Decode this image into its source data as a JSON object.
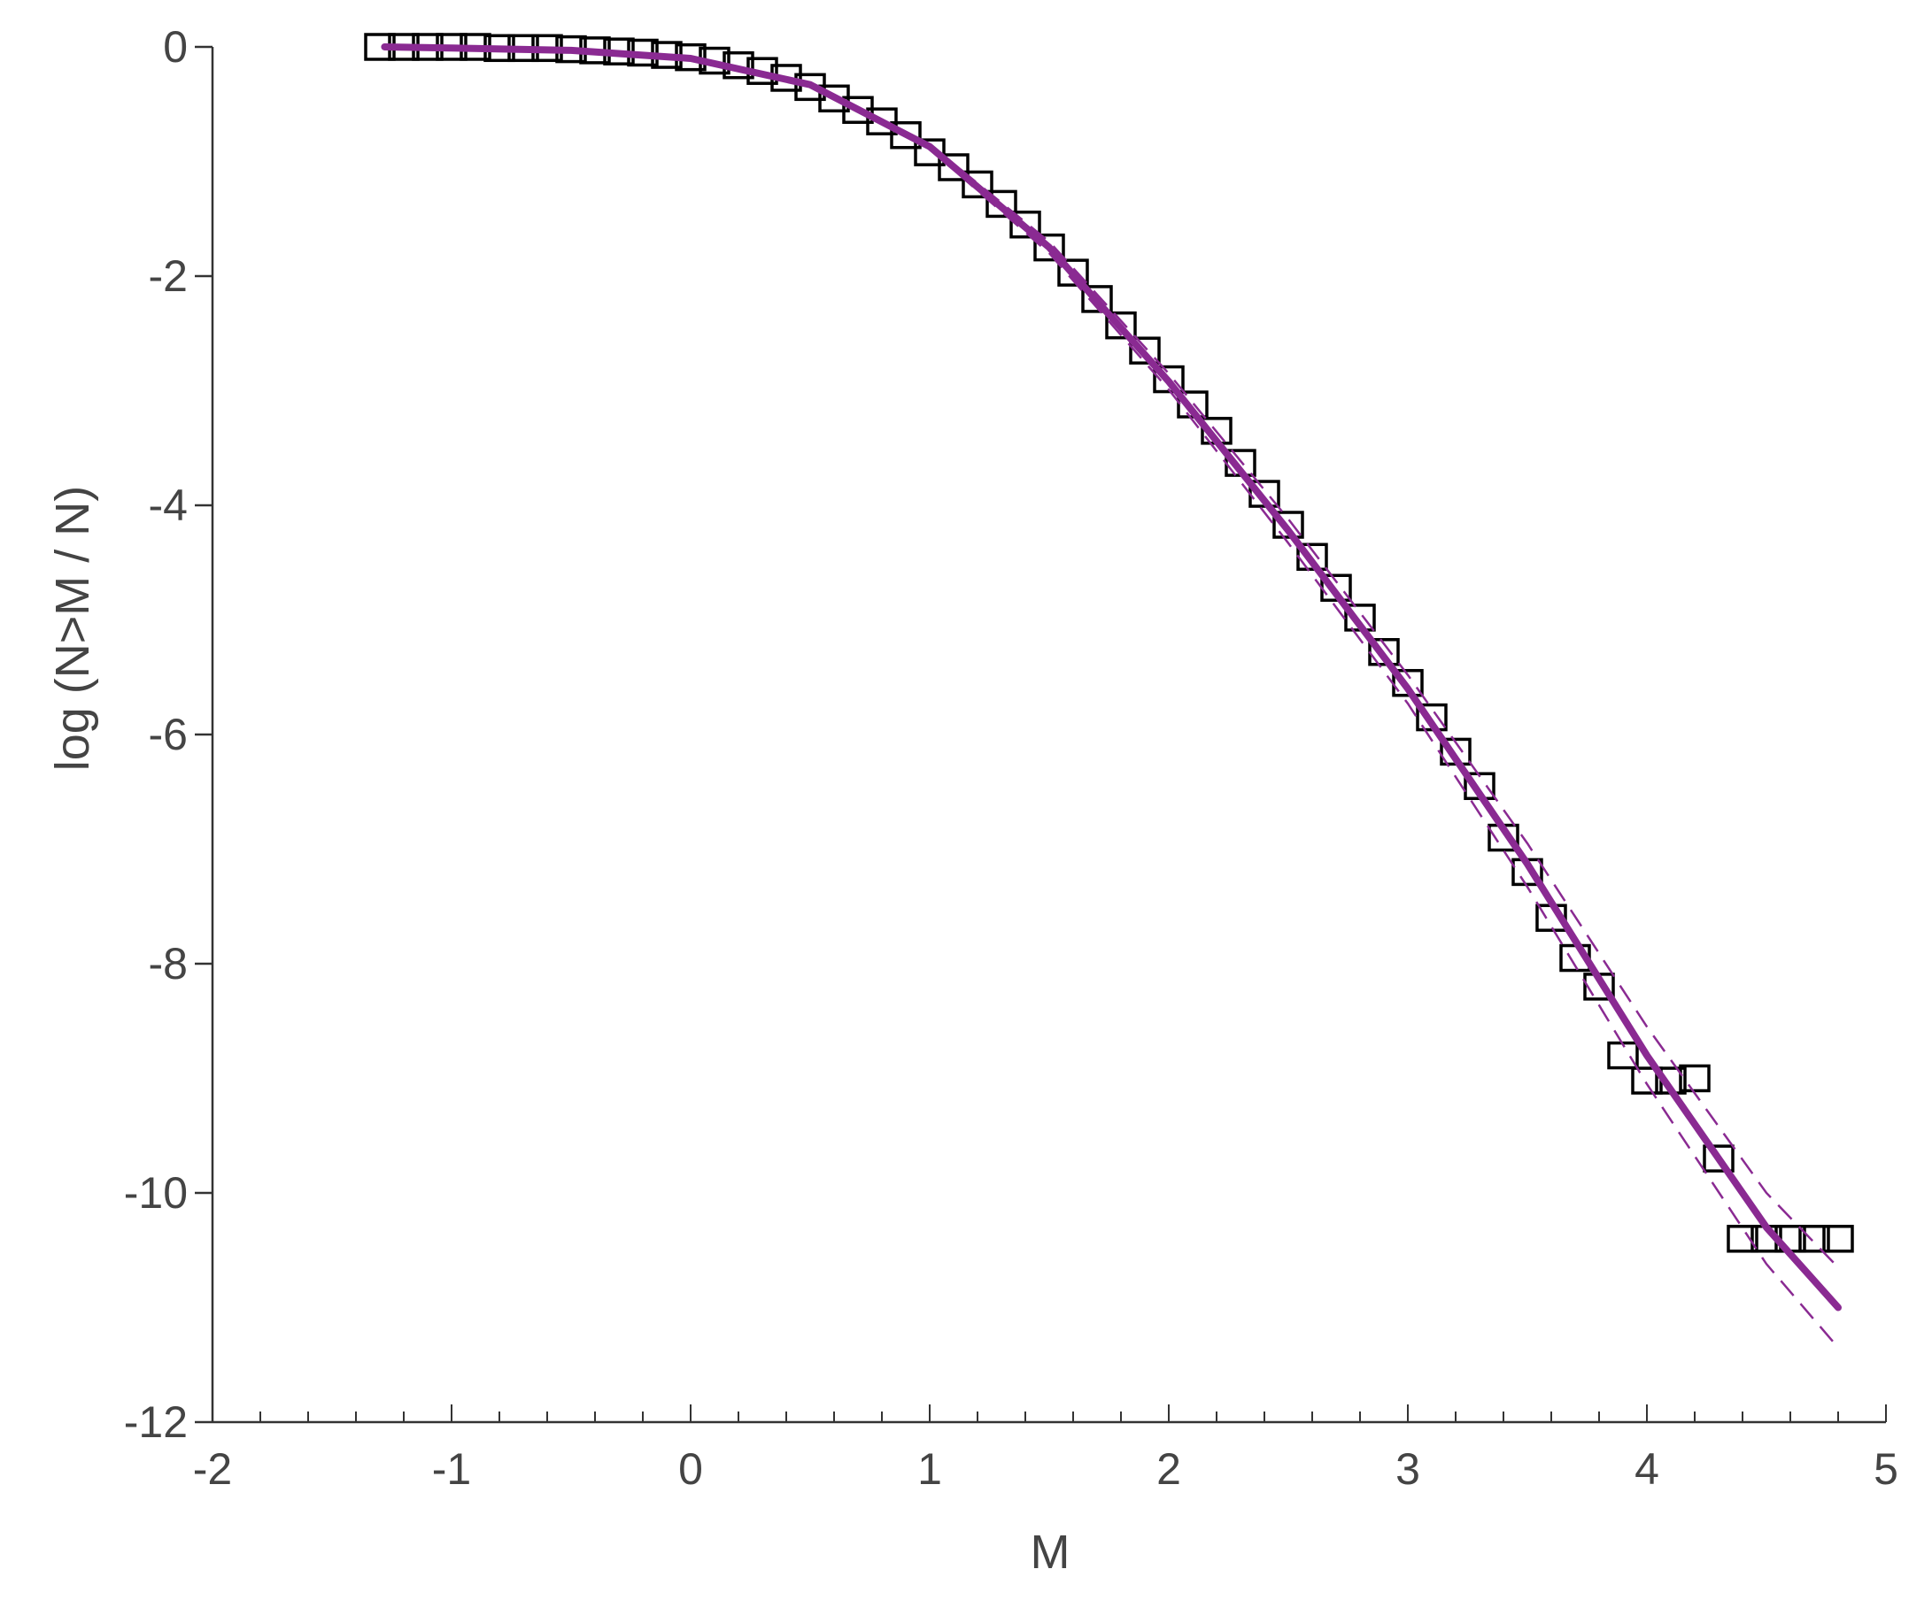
{
  "chart_data": {
    "type": "scatter",
    "title": "",
    "xlabel": "M",
    "ylabel": "log (N>M / N)",
    "xlim": [
      -2,
      5
    ],
    "ylim": [
      -12,
      0
    ],
    "x_ticks": [
      -2,
      -1,
      0,
      1,
      2,
      3,
      4,
      5
    ],
    "x_tick_labels": [
      "-2",
      "-1",
      "0",
      "1",
      "2",
      "3",
      "4",
      "5"
    ],
    "y_ticks": [
      0,
      -2,
      -4,
      -6,
      -8,
      -10,
      -12
    ],
    "y_tick_labels": [
      "0",
      "-2",
      "-4",
      "-6",
      "-8",
      "-10",
      "-12"
    ],
    "grid": false,
    "legend": "none",
    "series": [
      {
        "kind": "markers",
        "marker": "open-square",
        "color": "#000000",
        "points": [
          [
            -1.3,
            0.0
          ],
          [
            -1.2,
            0.0
          ],
          [
            -1.1,
            0.0
          ],
          [
            -1.0,
            0.0
          ],
          [
            -0.9,
            0.0
          ],
          [
            -0.8,
            -0.01
          ],
          [
            -0.7,
            -0.01
          ],
          [
            -0.6,
            -0.01
          ],
          [
            -0.5,
            -0.02
          ],
          [
            -0.4,
            -0.03
          ],
          [
            -0.3,
            -0.04
          ],
          [
            -0.2,
            -0.05
          ],
          [
            -0.1,
            -0.07
          ],
          [
            0.0,
            -0.09
          ],
          [
            0.1,
            -0.12
          ],
          [
            0.2,
            -0.16
          ],
          [
            0.3,
            -0.21
          ],
          [
            0.4,
            -0.27
          ],
          [
            0.5,
            -0.35
          ],
          [
            0.6,
            -0.45
          ],
          [
            0.7,
            -0.55
          ],
          [
            0.8,
            -0.65
          ],
          [
            0.9,
            -0.77
          ],
          [
            1.0,
            -0.92
          ],
          [
            1.1,
            -1.05
          ],
          [
            1.2,
            -1.2
          ],
          [
            1.3,
            -1.37
          ],
          [
            1.4,
            -1.55
          ],
          [
            1.5,
            -1.75
          ],
          [
            1.6,
            -1.97
          ],
          [
            1.7,
            -2.2
          ],
          [
            1.8,
            -2.43
          ],
          [
            1.9,
            -2.65
          ],
          [
            2.0,
            -2.9
          ],
          [
            2.1,
            -3.12
          ],
          [
            2.2,
            -3.35
          ],
          [
            2.3,
            -3.63
          ],
          [
            2.4,
            -3.9
          ],
          [
            2.5,
            -4.17
          ],
          [
            2.6,
            -4.45
          ],
          [
            2.7,
            -4.72
          ],
          [
            2.8,
            -4.98
          ],
          [
            2.9,
            -5.28
          ],
          [
            3.0,
            -5.55
          ],
          [
            3.1,
            -5.85
          ],
          [
            3.2,
            -6.15
          ],
          [
            3.3,
            -6.45
          ],
          [
            3.4,
            -6.9
          ],
          [
            3.5,
            -7.2
          ],
          [
            3.6,
            -7.6
          ],
          [
            3.7,
            -7.95
          ],
          [
            3.8,
            -8.2
          ],
          [
            3.9,
            -8.8
          ],
          [
            4.0,
            -9.02
          ],
          [
            4.1,
            -9.02
          ],
          [
            4.2,
            -9.0
          ],
          [
            4.3,
            -9.7
          ],
          [
            4.4,
            -10.4
          ],
          [
            4.5,
            -10.4
          ],
          [
            4.6,
            -10.4
          ],
          [
            4.7,
            -10.4
          ],
          [
            4.8,
            -10.4
          ]
        ]
      },
      {
        "kind": "fit-line",
        "style": "solid",
        "color": "#8a2a92",
        "x": [
          -1.28,
          -1.0,
          -0.5,
          0.0,
          0.5,
          1.0,
          1.5,
          2.0,
          2.5,
          3.0,
          3.5,
          4.0,
          4.5,
          4.8
        ],
        "y": [
          0.0,
          -0.01,
          -0.03,
          -0.1,
          -0.33,
          -0.87,
          -1.75,
          -2.92,
          -4.22,
          -5.6,
          -7.13,
          -8.8,
          -10.3,
          -11.0
        ]
      },
      {
        "kind": "confidence-bound",
        "style": "dashed",
        "color": "#8a2a92",
        "x": [
          -1.28,
          -1.0,
          -0.5,
          0.0,
          0.5,
          1.0,
          1.5,
          2.0,
          2.5,
          3.0,
          3.5,
          4.0,
          4.5,
          4.8
        ],
        "y": [
          0.0,
          -0.01,
          -0.03,
          -0.1,
          -0.33,
          -0.85,
          -1.7,
          -2.85,
          -4.12,
          -5.48,
          -6.95,
          -8.55,
          -10.0,
          -10.65
        ]
      },
      {
        "kind": "confidence-bound",
        "style": "dashed",
        "color": "#8a2a92",
        "x": [
          -1.28,
          -1.0,
          -0.5,
          0.0,
          0.5,
          1.0,
          1.5,
          2.0,
          2.5,
          3.0,
          3.5,
          4.0,
          4.5,
          4.8
        ],
        "y": [
          0.0,
          -0.01,
          -0.03,
          -0.1,
          -0.34,
          -0.89,
          -1.8,
          -2.99,
          -4.33,
          -5.73,
          -7.33,
          -9.05,
          -10.62,
          -11.35
        ]
      }
    ]
  }
}
